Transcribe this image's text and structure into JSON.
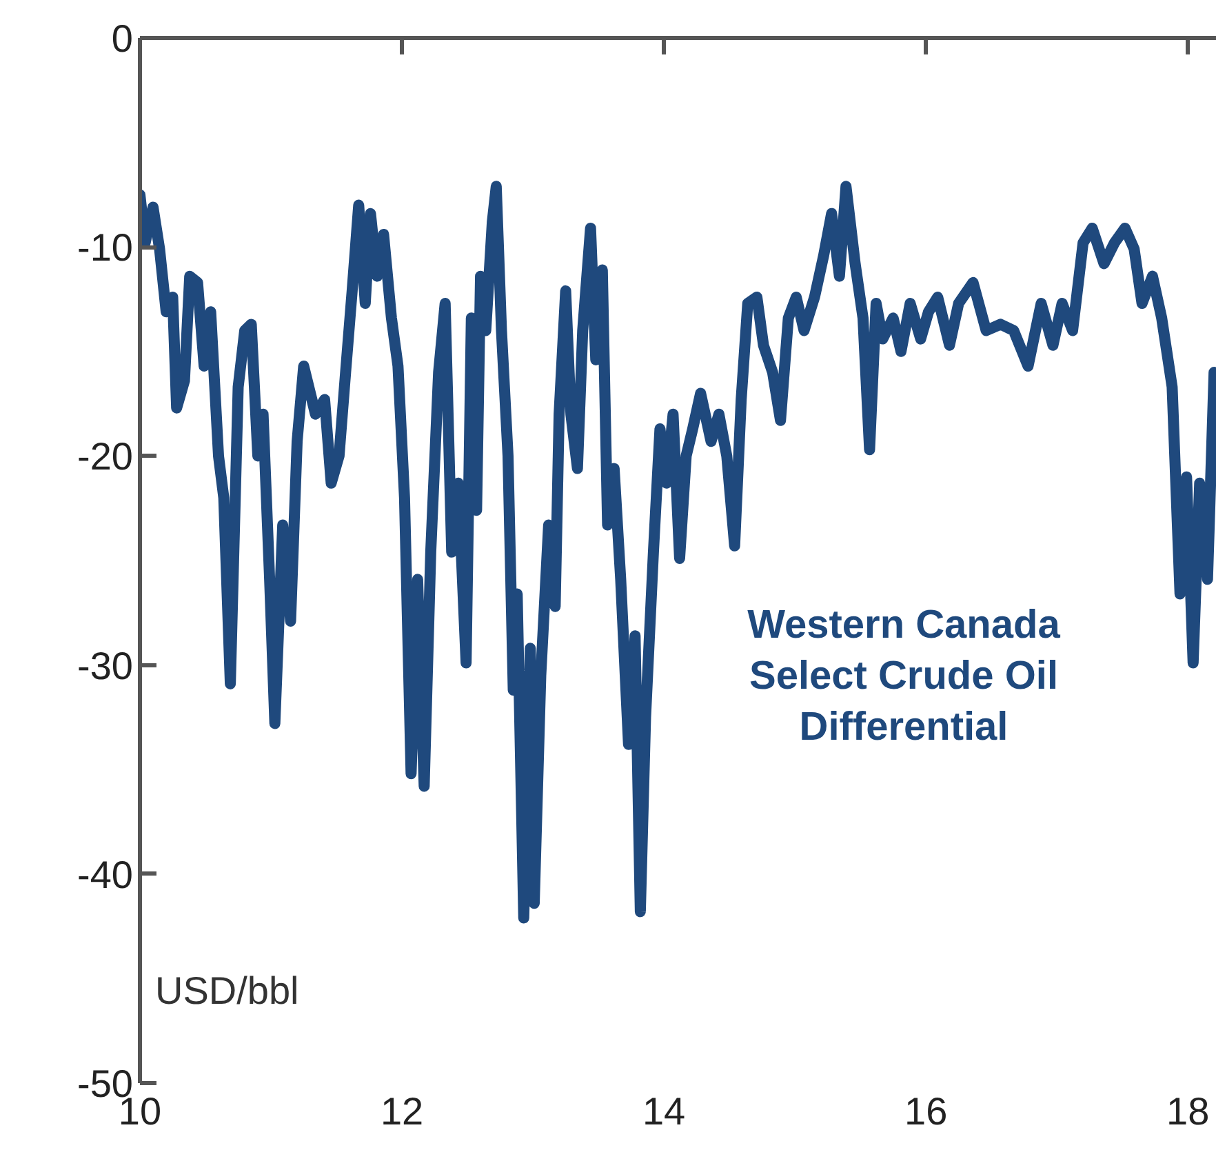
{
  "chart_data": {
    "type": "line",
    "ylabel": "USD/bbl",
    "xlim": [
      10,
      18.22
    ],
    "xticks": [
      10,
      12,
      14,
      16,
      18
    ],
    "ylim": [
      -50,
      0
    ],
    "yticks": [
      -50,
      -40,
      -30,
      -20,
      -10,
      0
    ],
    "grid": false,
    "series": [
      {
        "name": "Western Canada\nSelect Crude Oil\nDifferential",
        "color": "#1f497d",
        "x": [
          10.0,
          10.04,
          10.1,
          10.15,
          10.2,
          10.25,
          10.28,
          10.34,
          10.38,
          10.44,
          10.49,
          10.54,
          10.6,
          10.64,
          10.69,
          10.75,
          10.8,
          10.85,
          10.9,
          10.94,
          10.99,
          11.03,
          11.09,
          11.15,
          11.2,
          11.25,
          11.34,
          11.41,
          11.46,
          11.52,
          11.57,
          11.62,
          11.67,
          11.72,
          11.76,
          11.81,
          11.86,
          11.92,
          11.97,
          12.02,
          12.07,
          12.12,
          12.17,
          12.22,
          12.28,
          12.33,
          12.38,
          12.43,
          12.49,
          12.53,
          12.57,
          12.6,
          12.64,
          12.69,
          12.72,
          12.76,
          12.81,
          12.85,
          12.88,
          12.93,
          12.98,
          13.01,
          13.06,
          13.12,
          13.17,
          13.2,
          13.25,
          13.29,
          13.34,
          13.38,
          13.44,
          13.48,
          13.53,
          13.57,
          13.62,
          13.67,
          13.73,
          13.78,
          13.82,
          13.86,
          13.92,
          13.97,
          14.02,
          14.07,
          14.12,
          14.17,
          14.22,
          14.28,
          14.36,
          14.42,
          14.48,
          14.54,
          14.59,
          14.64,
          14.71,
          14.76,
          14.83,
          14.89,
          14.95,
          15.01,
          15.07,
          15.15,
          15.22,
          15.28,
          15.34,
          15.39,
          15.46,
          15.52,
          15.57,
          15.62,
          15.67,
          15.75,
          15.81,
          15.88,
          15.96,
          16.02,
          16.09,
          16.18,
          16.25,
          16.36,
          16.46,
          16.57,
          16.67,
          16.78,
          16.88,
          16.97,
          17.04,
          17.12,
          17.2,
          17.27,
          17.36,
          17.44,
          17.52,
          17.59,
          17.65,
          17.73,
          17.8,
          17.88,
          17.94,
          17.99,
          18.04,
          18.09,
          18.15,
          18.2
        ],
        "values": [
          -7.5,
          -9.8,
          -8.1,
          -10.1,
          -13.1,
          -12.4,
          -17.7,
          -16.4,
          -11.4,
          -11.7,
          -15.7,
          -13.1,
          -20,
          -22,
          -30.9,
          -16.7,
          -14,
          -13.7,
          -20,
          -18,
          -25.9,
          -32.8,
          -23.3,
          -27.9,
          -19.3,
          -15.7,
          -18,
          -17.3,
          -21.3,
          -20,
          -16,
          -12.1,
          -8,
          -12.7,
          -8.4,
          -11.4,
          -9.4,
          -13.4,
          -15.7,
          -22,
          -35.2,
          -25.9,
          -35.8,
          -24.6,
          -16,
          -12.7,
          -24.6,
          -21.3,
          -29.9,
          -13.4,
          -22.6,
          -11.4,
          -14,
          -8.8,
          -7.1,
          -14,
          -20,
          -31.2,
          -26.6,
          -42.1,
          -29.2,
          -41.4,
          -30.5,
          -23.3,
          -27.2,
          -18,
          -12.1,
          -18,
          -20.6,
          -14,
          -9.1,
          -15.4,
          -11.1,
          -23.3,
          -20.6,
          -25.9,
          -33.8,
          -28.6,
          -41.8,
          -32.5,
          -24.6,
          -18.7,
          -21.3,
          -18,
          -24.9,
          -20,
          -18.7,
          -17,
          -19.3,
          -18,
          -20,
          -24.3,
          -17.3,
          -12.7,
          -12.4,
          -14.7,
          -16,
          -18.3,
          -13.4,
          -12.4,
          -14,
          -12.4,
          -10.4,
          -8.4,
          -11.4,
          -7.1,
          -10.8,
          -13.4,
          -19.7,
          -12.7,
          -14.4,
          -13.4,
          -15,
          -12.7,
          -14.4,
          -13.1,
          -12.4,
          -14.7,
          -12.7,
          -11.7,
          -14,
          -13.7,
          -14,
          -15.7,
          -12.7,
          -14.7,
          -12.7,
          -14,
          -9.8,
          -9.1,
          -10.8,
          -9.8,
          -9.1,
          -10.1,
          -12.7,
          -11.4,
          -13.4,
          -16.7,
          -26.6,
          -21,
          -29.9,
          -21.3,
          -25.9,
          -16
        ]
      }
    ]
  }
}
